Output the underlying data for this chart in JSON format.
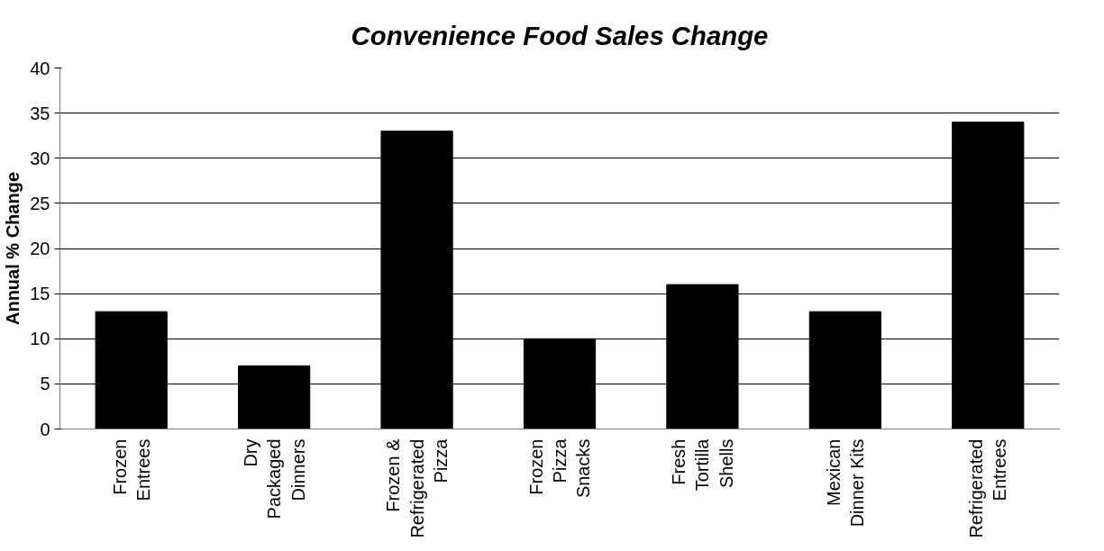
{
  "chart_data": {
    "type": "bar",
    "title": "Convenience Food Sales Change",
    "ylabel": "Annual % Change",
    "categories": [
      "Frozen\nEntrees",
      "Dry\nPackaged\nDinners",
      "Frozen &\nRefrigerated\nPizza",
      "Frozen\nPizza\nSnacks",
      "Fresh\nTortilla\nShells",
      "Mexican\nDinner Kits",
      "Refrigerated\nEntrees"
    ],
    "values": [
      13,
      7,
      33,
      10,
      16,
      13,
      34
    ],
    "color": "#000000",
    "ylim": [
      0,
      40
    ],
    "yticks": [
      0,
      5,
      10,
      15,
      20,
      25,
      30,
      35,
      40
    ],
    "grid": "y"
  }
}
